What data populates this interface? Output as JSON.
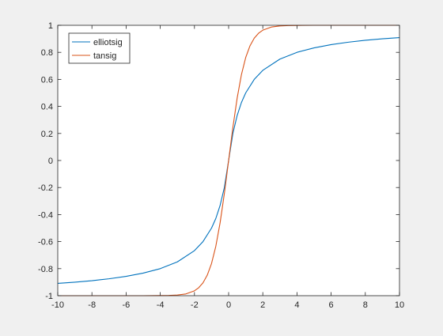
{
  "window": {
    "background": "#f0f0f0"
  },
  "chart_data": {
    "type": "line",
    "title": "",
    "xlabel": "",
    "ylabel": "",
    "xlim": [
      -10,
      10
    ],
    "ylim": [
      -1,
      1
    ],
    "x_ticks": [
      -10,
      -8,
      -6,
      -4,
      -2,
      0,
      2,
      4,
      6,
      8,
      10
    ],
    "y_ticks": [
      -1,
      -0.8,
      -0.6,
      -0.4,
      -0.2,
      0,
      0.2,
      0.4,
      0.6,
      0.8,
      1
    ],
    "x_tick_labels": [
      "-10",
      "-8",
      "-6",
      "-4",
      "-2",
      "0",
      "2",
      "4",
      "6",
      "8",
      "10"
    ],
    "y_tick_labels": [
      "-1",
      "-0.8",
      "-0.6",
      "-0.4",
      "-0.2",
      "0",
      "0.2",
      "0.4",
      "0.6",
      "0.8",
      "1"
    ],
    "grid": false,
    "legend": {
      "placement": "top-left",
      "entries": [
        "elliotsig",
        "tansig"
      ]
    },
    "series": [
      {
        "name": "elliotsig",
        "color": "#0072bd",
        "x": [
          -10,
          -9,
          -8,
          -7,
          -6,
          -5,
          -4,
          -3,
          -2,
          -1.5,
          -1,
          -0.75,
          -0.5,
          -0.25,
          0,
          0.25,
          0.5,
          0.75,
          1,
          1.5,
          2,
          3,
          4,
          5,
          6,
          7,
          8,
          9,
          10
        ],
        "y": [
          -0.909,
          -0.9,
          -0.889,
          -0.875,
          -0.857,
          -0.833,
          -0.8,
          -0.75,
          -0.667,
          -0.6,
          -0.5,
          -0.429,
          -0.333,
          -0.2,
          0,
          0.2,
          0.333,
          0.429,
          0.5,
          0.6,
          0.667,
          0.75,
          0.8,
          0.833,
          0.857,
          0.875,
          0.889,
          0.9,
          0.909
        ]
      },
      {
        "name": "tansig",
        "color": "#d95319",
        "x": [
          -10,
          -5,
          -4,
          -3.5,
          -3,
          -2.5,
          -2,
          -1.75,
          -1.5,
          -1.25,
          -1,
          -0.75,
          -0.5,
          -0.25,
          0,
          0.25,
          0.5,
          0.75,
          1,
          1.25,
          1.5,
          1.75,
          2,
          2.5,
          3,
          3.5,
          4,
          5,
          10
        ],
        "y": [
          -1,
          -1,
          -0.999,
          -0.998,
          -0.995,
          -0.987,
          -0.964,
          -0.941,
          -0.905,
          -0.848,
          -0.762,
          -0.635,
          -0.462,
          -0.245,
          0,
          0.245,
          0.462,
          0.635,
          0.762,
          0.848,
          0.905,
          0.941,
          0.964,
          0.987,
          0.995,
          0.998,
          0.999,
          1,
          1
        ]
      }
    ]
  }
}
